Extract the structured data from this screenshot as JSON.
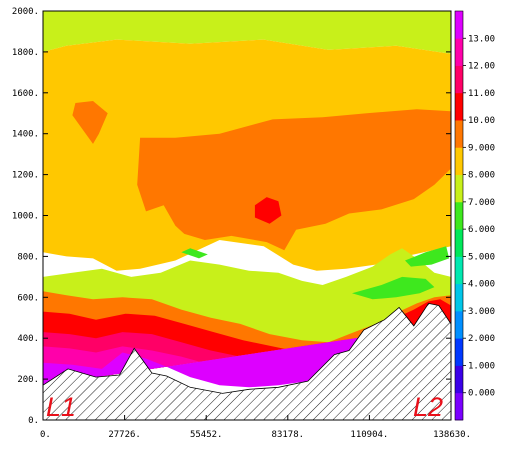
{
  "chart_data": {
    "type": "contour",
    "title": "",
    "xlabel": "",
    "ylabel": "",
    "xlim": [
      0,
      138630
    ],
    "ylim": [
      0,
      2000
    ],
    "x_tick_labels": [
      "0.",
      "27726.",
      "55452.",
      "83178.",
      "110904.",
      "138630."
    ],
    "y_tick_labels": [
      "0.",
      "200.",
      "400.",
      "600.",
      "800.",
      "1000.",
      "1200.",
      "1400.",
      "1600.",
      "1800.",
      "2000."
    ],
    "corner_labels": {
      "left": "L1",
      "right": "L2"
    },
    "colorbar": {
      "tick_labels": [
        "0.000",
        "1.000",
        "2.000",
        "3.000",
        "4.000",
        "5.000",
        "6.000",
        "7.000",
        "8.000",
        "9.000",
        "10.00",
        "11.00",
        "12.00",
        "13.00"
      ],
      "levels": [
        {
          "min": -1,
          "max": 0,
          "color": "#7a00ff"
        },
        {
          "min": 0,
          "max": 1,
          "color": "#3b00e8"
        },
        {
          "min": 1,
          "max": 2,
          "color": "#0038ff"
        },
        {
          "min": 2,
          "max": 3,
          "color": "#008fff"
        },
        {
          "min": 3,
          "max": 4,
          "color": "#00c6e8"
        },
        {
          "min": 4,
          "max": 5,
          "color": "#00e8b0"
        },
        {
          "min": 5,
          "max": 6,
          "color": "#00e85a"
        },
        {
          "min": 6,
          "max": 7,
          "color": "#3ee81e"
        },
        {
          "min": 7,
          "max": 8,
          "color": "#c8f01a"
        },
        {
          "min": 8,
          "max": 9,
          "color": "#ffc800"
        },
        {
          "min": 9,
          "max": 10,
          "color": "#ff7700"
        },
        {
          "min": 10,
          "max": 11,
          "color": "#ff0000"
        },
        {
          "min": 11,
          "max": 12,
          "color": "#ff0066"
        },
        {
          "min": 12,
          "max": 13,
          "color": "#ff00aa"
        },
        {
          "min": 13,
          "max": 14,
          "color": "#dd00ff"
        }
      ]
    },
    "terrain": {
      "x": [
        0,
        8500,
        18000,
        26000,
        31000,
        37000,
        42000,
        50000,
        61000,
        70000,
        80000,
        90000,
        99000,
        104000,
        109000,
        116000,
        121000,
        126000,
        131000,
        134500,
        138630
      ],
      "y": [
        170,
        250,
        210,
        220,
        350,
        230,
        215,
        160,
        130,
        150,
        160,
        190,
        320,
        340,
        440,
        490,
        550,
        460,
        570,
        560,
        470
      ]
    },
    "regions": [
      {
        "value": 7.5,
        "boundary": "top",
        "points": [
          [
            0,
            2000
          ],
          [
            138630,
            2000
          ],
          [
            138630,
            1790
          ],
          [
            120000,
            1830
          ],
          [
            97000,
            1810
          ],
          [
            75000,
            1860
          ],
          [
            50000,
            1840
          ],
          [
            25000,
            1860
          ],
          [
            8000,
            1830
          ],
          [
            0,
            1800
          ]
        ]
      },
      {
        "value": 8.5,
        "boundary": "top",
        "points": [
          [
            0,
            1800
          ],
          [
            8000,
            1830
          ],
          [
            25000,
            1860
          ],
          [
            50000,
            1840
          ],
          [
            75000,
            1860
          ],
          [
            97000,
            1810
          ],
          [
            120000,
            1830
          ],
          [
            138630,
            1790
          ],
          [
            138630,
            850
          ],
          [
            120000,
            790
          ],
          [
            113000,
            760
          ],
          [
            103000,
            740
          ],
          [
            93000,
            730
          ],
          [
            85000,
            760
          ],
          [
            75000,
            850
          ],
          [
            60000,
            880
          ],
          [
            45000,
            780
          ],
          [
            33000,
            740
          ],
          [
            25000,
            730
          ],
          [
            17000,
            790
          ],
          [
            8000,
            800
          ],
          [
            0,
            820
          ]
        ]
      },
      {
        "value": 9.5,
        "boundary": "none",
        "points": [
          [
            33000,
            1380
          ],
          [
            45000,
            1380
          ],
          [
            60000,
            1400
          ],
          [
            78000,
            1470
          ],
          [
            95000,
            1480
          ],
          [
            110000,
            1500
          ],
          [
            127000,
            1520
          ],
          [
            138630,
            1510
          ],
          [
            138630,
            1230
          ],
          [
            133000,
            1150
          ],
          [
            126000,
            1080
          ],
          [
            115000,
            1030
          ],
          [
            104000,
            1010
          ],
          [
            96000,
            960
          ],
          [
            86000,
            930
          ],
          [
            82000,
            830
          ],
          [
            76000,
            870
          ],
          [
            64000,
            900
          ],
          [
            55000,
            880
          ],
          [
            48000,
            910
          ],
          [
            45000,
            950
          ],
          [
            41000,
            1050
          ],
          [
            35000,
            1020
          ],
          [
            32000,
            1150
          ]
        ]
      },
      {
        "value": 9.5,
        "boundary": "none",
        "points": [
          [
            11000,
            1550
          ],
          [
            17000,
            1560
          ],
          [
            22000,
            1500
          ],
          [
            19000,
            1400
          ],
          [
            17000,
            1350
          ],
          [
            13000,
            1430
          ],
          [
            10000,
            1490
          ]
        ]
      },
      {
        "value": 10.5,
        "boundary": "none",
        "points": [
          [
            72000,
            1050
          ],
          [
            76000,
            1090
          ],
          [
            80000,
            1070
          ],
          [
            81000,
            1000
          ],
          [
            77000,
            960
          ],
          [
            72000,
            990
          ]
        ]
      },
      {
        "value": 7.5,
        "boundary": "bottom",
        "points": [
          [
            0,
            700
          ],
          [
            10000,
            720
          ],
          [
            20000,
            740
          ],
          [
            30000,
            700
          ],
          [
            40000,
            720
          ],
          [
            50000,
            780
          ],
          [
            60000,
            760
          ],
          [
            70000,
            730
          ],
          [
            80000,
            720
          ],
          [
            88000,
            680
          ],
          [
            95000,
            660
          ],
          [
            103000,
            700
          ],
          [
            112000,
            750
          ],
          [
            118000,
            810
          ],
          [
            122000,
            840
          ],
          [
            128000,
            780
          ],
          [
            133000,
            720
          ],
          [
            138630,
            700
          ],
          [
            138630,
            470
          ],
          [
            0,
            170
          ]
        ]
      },
      {
        "value": 6.5,
        "boundary": "none",
        "points": [
          [
            105000,
            620
          ],
          [
            115000,
            660
          ],
          [
            122000,
            700
          ],
          [
            130000,
            690
          ],
          [
            133000,
            650
          ],
          [
            128000,
            620
          ],
          [
            120000,
            600
          ],
          [
            112000,
            590
          ]
        ]
      },
      {
        "value": 6.5,
        "boundary": "none",
        "points": [
          [
            123000,
            780
          ],
          [
            130000,
            820
          ],
          [
            137000,
            850
          ],
          [
            138000,
            790
          ],
          [
            132000,
            760
          ],
          [
            125000,
            750
          ]
        ]
      },
      {
        "value": 6.5,
        "boundary": "none",
        "points": [
          [
            47000,
            820
          ],
          [
            50000,
            840
          ],
          [
            56000,
            810
          ],
          [
            53000,
            790
          ]
        ]
      },
      {
        "value": 9.5,
        "boundary": "bottom",
        "points": [
          [
            0,
            630
          ],
          [
            8000,
            610
          ],
          [
            17000,
            590
          ],
          [
            27000,
            600
          ],
          [
            37000,
            590
          ],
          [
            47000,
            540
          ],
          [
            57000,
            500
          ],
          [
            67000,
            470
          ],
          [
            77000,
            420
          ],
          [
            88000,
            390
          ],
          [
            97000,
            380
          ],
          [
            104000,
            420
          ],
          [
            113000,
            470
          ],
          [
            121000,
            530
          ],
          [
            127000,
            570
          ],
          [
            133000,
            600
          ],
          [
            138630,
            610
          ],
          [
            138630,
            470
          ],
          [
            0,
            170
          ]
        ]
      },
      {
        "value": 10.5,
        "boundary": "bottom",
        "points": [
          [
            0,
            530
          ],
          [
            9000,
            520
          ],
          [
            18000,
            490
          ],
          [
            28000,
            520
          ],
          [
            38000,
            510
          ],
          [
            48000,
            470
          ],
          [
            58000,
            430
          ],
          [
            68000,
            390
          ],
          [
            78000,
            360
          ],
          [
            88000,
            330
          ],
          [
            97000,
            310
          ],
          [
            104000,
            350
          ],
          [
            113000,
            430
          ],
          [
            120000,
            500
          ],
          [
            126000,
            540
          ],
          [
            131000,
            580
          ],
          [
            135000,
            590
          ],
          [
            138630,
            560
          ],
          [
            138630,
            470
          ],
          [
            0,
            170
          ]
        ]
      },
      {
        "value": 11.5,
        "boundary": "bottom",
        "points": [
          [
            0,
            430
          ],
          [
            9000,
            420
          ],
          [
            18000,
            400
          ],
          [
            27000,
            430
          ],
          [
            37000,
            420
          ],
          [
            47000,
            380
          ],
          [
            57000,
            340
          ],
          [
            67000,
            310
          ],
          [
            77000,
            290
          ],
          [
            88000,
            270
          ],
          [
            97000,
            290
          ],
          [
            138630,
            470
          ],
          [
            0,
            170
          ]
        ]
      },
      {
        "value": 12.5,
        "boundary": "bottom",
        "points": [
          [
            0,
            360
          ],
          [
            9000,
            350
          ],
          [
            18000,
            330
          ],
          [
            27000,
            360
          ],
          [
            37000,
            340
          ],
          [
            47000,
            310
          ],
          [
            57000,
            270
          ],
          [
            67000,
            240
          ],
          [
            77000,
            220
          ],
          [
            88000,
            220
          ],
          [
            97000,
            250
          ],
          [
            138630,
            470
          ],
          [
            0,
            170
          ]
        ]
      },
      {
        "value": 13.5,
        "boundary": "bottom",
        "points": [
          [
            0,
            280
          ],
          [
            10000,
            270
          ],
          [
            20000,
            250
          ],
          [
            27000,
            330
          ],
          [
            35000,
            300
          ],
          [
            42000,
            260
          ],
          [
            50000,
            210
          ],
          [
            60000,
            170
          ],
          [
            70000,
            160
          ],
          [
            80000,
            170
          ],
          [
            90000,
            190
          ],
          [
            138630,
            470
          ],
          [
            0,
            170
          ]
        ]
      }
    ]
  }
}
